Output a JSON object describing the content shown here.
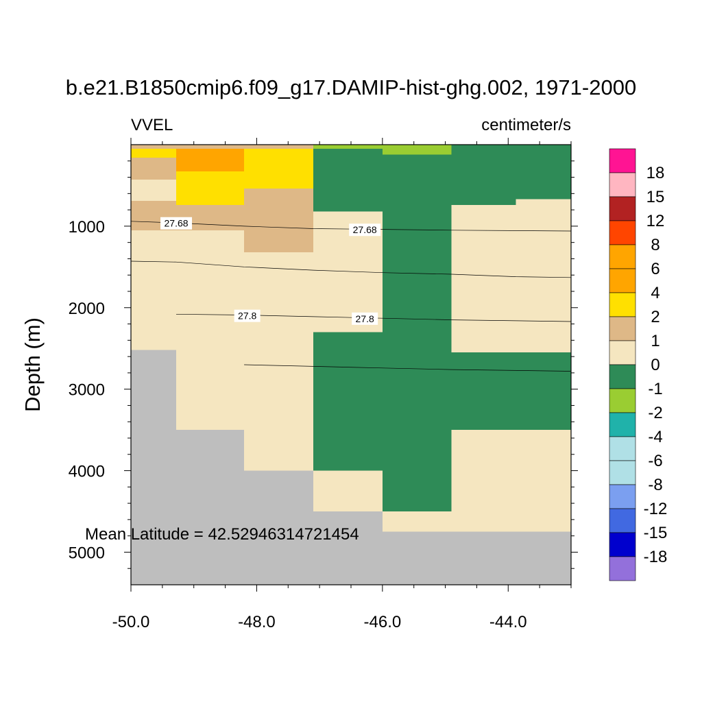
{
  "chart_data": {
    "type": "heatmap",
    "title": "b.e21.B1850cmip6.f09_g17.DAMIP-hist-ghg.002, 1971-2000",
    "left_string": "VVEL",
    "right_string": "centimeter/s",
    "ylabel": "Depth (m)",
    "xlabel": "",
    "annotation": "Mean Latitude = 42.52946314721454",
    "x_ticks": [
      "-50.0",
      "-48.0",
      "-46.0",
      "-44.0"
    ],
    "y_ticks": [
      "1000",
      "2000",
      "3000",
      "4000",
      "5000"
    ],
    "xlim": [
      -50.0,
      -43.0
    ],
    "ylim": [
      0,
      5400
    ],
    "y_reversed": true,
    "missing_color": "#bebebe",
    "legend_labels": [
      "18",
      "15",
      "12",
      "8",
      "6",
      "4",
      "2",
      "1",
      "0",
      "-1",
      "-2",
      "-4",
      "-6",
      "-8",
      "-12",
      "-15",
      "-18"
    ],
    "legend_colors": [
      "#ff1493",
      "#ffb6c1",
      "#b22222",
      "#ff4500",
      "#ffa500",
      "#ffa500",
      "#ffe000",
      "#deb887",
      "#f5e6c0",
      "#2e8b57",
      "#9acd32",
      "#20b2aa",
      "#b0e0e6",
      "#b0e0e6",
      "#7b9ff0",
      "#4169e1",
      "#0000cd",
      "#9370db"
    ],
    "cells": [
      {
        "lon": [
          -50.0,
          -49.28
        ],
        "depth": [
          0,
          50
        ],
        "value": 1.5
      },
      {
        "lon": [
          -50.0,
          -49.28
        ],
        "depth": [
          50,
          160
        ],
        "value": 3
      },
      {
        "lon": [
          -50.0,
          -49.28
        ],
        "depth": [
          160,
          430
        ],
        "value": 1.5
      },
      {
        "lon": [
          -50.0,
          -49.28
        ],
        "depth": [
          430,
          690
        ],
        "value": 0.5
      },
      {
        "lon": [
          -50.0,
          -49.28
        ],
        "depth": [
          690,
          1050
        ],
        "value": 1.5
      },
      {
        "lon": [
          -50.0,
          -49.28
        ],
        "depth": [
          1050,
          2520
        ],
        "value": 0.5
      },
      {
        "lon": [
          -49.28,
          -48.2
        ],
        "depth": [
          0,
          50
        ],
        "value": 1.5
      },
      {
        "lon": [
          -49.28,
          -48.2
        ],
        "depth": [
          50,
          330
        ],
        "value": 5
      },
      {
        "lon": [
          -49.28,
          -48.2
        ],
        "depth": [
          330,
          740
        ],
        "value": 3
      },
      {
        "lon": [
          -49.28,
          -48.2
        ],
        "depth": [
          740,
          1050
        ],
        "value": 1.5
      },
      {
        "lon": [
          -49.28,
          -48.2
        ],
        "depth": [
          1050,
          3500
        ],
        "value": 0.5
      },
      {
        "lon": [
          -48.2,
          -47.1
        ],
        "depth": [
          0,
          50
        ],
        "value": 1.5
      },
      {
        "lon": [
          -48.2,
          -47.1
        ],
        "depth": [
          50,
          540
        ],
        "value": 3
      },
      {
        "lon": [
          -48.2,
          -47.1
        ],
        "depth": [
          540,
          1320
        ],
        "value": 1.5
      },
      {
        "lon": [
          -48.2,
          -47.1
        ],
        "depth": [
          1320,
          4000
        ],
        "value": 0.5
      },
      {
        "lon": [
          -47.1,
          -46.0
        ],
        "depth": [
          0,
          50
        ],
        "value": -1.5
      },
      {
        "lon": [
          -47.1,
          -46.0
        ],
        "depth": [
          50,
          820
        ],
        "value": -0.5
      },
      {
        "lon": [
          -47.1,
          -46.0
        ],
        "depth": [
          820,
          2300
        ],
        "value": 0.5
      },
      {
        "lon": [
          -47.1,
          -46.0
        ],
        "depth": [
          2300,
          4000
        ],
        "value": -0.5
      },
      {
        "lon": [
          -47.1,
          -46.0
        ],
        "depth": [
          4000,
          4500
        ],
        "value": 0.5
      },
      {
        "lon": [
          -46.0,
          -44.9
        ],
        "depth": [
          0,
          120
        ],
        "value": -1.5
      },
      {
        "lon": [
          -46.0,
          -44.9
        ],
        "depth": [
          120,
          4500
        ],
        "value": -0.5
      },
      {
        "lon": [
          -46.0,
          -44.9
        ],
        "depth": [
          4500,
          4750
        ],
        "value": 0.5
      },
      {
        "lon": [
          -44.9,
          -43.88
        ],
        "depth": [
          0,
          50
        ],
        "value": -0.5
      },
      {
        "lon": [
          -44.9,
          -43.88
        ],
        "depth": [
          50,
          740
        ],
        "value": -0.5
      },
      {
        "lon": [
          -44.9,
          -43.88
        ],
        "depth": [
          740,
          2550
        ],
        "value": 0.5
      },
      {
        "lon": [
          -44.9,
          -43.88
        ],
        "depth": [
          2550,
          3500
        ],
        "value": -0.5
      },
      {
        "lon": [
          -44.9,
          -43.88
        ],
        "depth": [
          3500,
          4750
        ],
        "value": 0.5
      },
      {
        "lon": [
          -43.88,
          -43.0
        ],
        "depth": [
          0,
          50
        ],
        "value": -0.5
      },
      {
        "lon": [
          -43.88,
          -43.0
        ],
        "depth": [
          50,
          670
        ],
        "value": -0.5
      },
      {
        "lon": [
          -43.88,
          -43.0
        ],
        "depth": [
          670,
          2550
        ],
        "value": 0.5
      },
      {
        "lon": [
          -43.88,
          -43.0
        ],
        "depth": [
          2550,
          3500
        ],
        "value": -0.5
      },
      {
        "lon": [
          -43.88,
          -43.0
        ],
        "depth": [
          3500,
          4750
        ],
        "value": 0.5
      }
    ],
    "missing_cells": [
      {
        "lon": [
          -50.0,
          -49.28
        ],
        "depth": [
          2520,
          5400
        ]
      },
      {
        "lon": [
          -49.28,
          -48.2
        ],
        "depth": [
          3500,
          5400
        ]
      },
      {
        "lon": [
          -48.2,
          -47.1
        ],
        "depth": [
          4000,
          5400
        ]
      },
      {
        "lon": [
          -47.1,
          -46.0
        ],
        "depth": [
          4500,
          5400
        ]
      },
      {
        "lon": [
          -46.0,
          -43.0
        ],
        "depth": [
          4750,
          5400
        ]
      }
    ],
    "contours": [
      {
        "label": "27.68",
        "points": [
          [
            -50.0,
            940
          ],
          [
            -49.28,
            960
          ],
          [
            -48.2,
            1000
          ],
          [
            -47.1,
            1030
          ],
          [
            -46.0,
            1040
          ],
          [
            -44.9,
            1050
          ],
          [
            -43.0,
            1060
          ]
        ],
        "label_positions": [
          [
            -49.28,
            965
          ],
          [
            -46.28,
            1045
          ]
        ]
      },
      {
        "label": "",
        "points": [
          [
            -50.0,
            1430
          ],
          [
            -49.28,
            1440
          ],
          [
            -48.2,
            1500
          ],
          [
            -47.1,
            1540
          ],
          [
            -46.0,
            1570
          ],
          [
            -44.9,
            1590
          ],
          [
            -43.88,
            1620
          ],
          [
            -43.0,
            1630
          ]
        ],
        "label_positions": []
      },
      {
        "label": "27.8",
        "points": [
          [
            -49.28,
            2080
          ],
          [
            -48.2,
            2090
          ],
          [
            -47.1,
            2110
          ],
          [
            -46.0,
            2130
          ],
          [
            -44.9,
            2150
          ],
          [
            -43.0,
            2170
          ]
        ],
        "label_positions": [
          [
            -48.15,
            2100
          ],
          [
            -46.28,
            2135
          ]
        ]
      },
      {
        "label": "",
        "points": [
          [
            -48.2,
            2700
          ],
          [
            -47.1,
            2720
          ],
          [
            -46.0,
            2740
          ],
          [
            -44.9,
            2760
          ],
          [
            -43.0,
            2780
          ]
        ],
        "label_positions": []
      }
    ]
  }
}
